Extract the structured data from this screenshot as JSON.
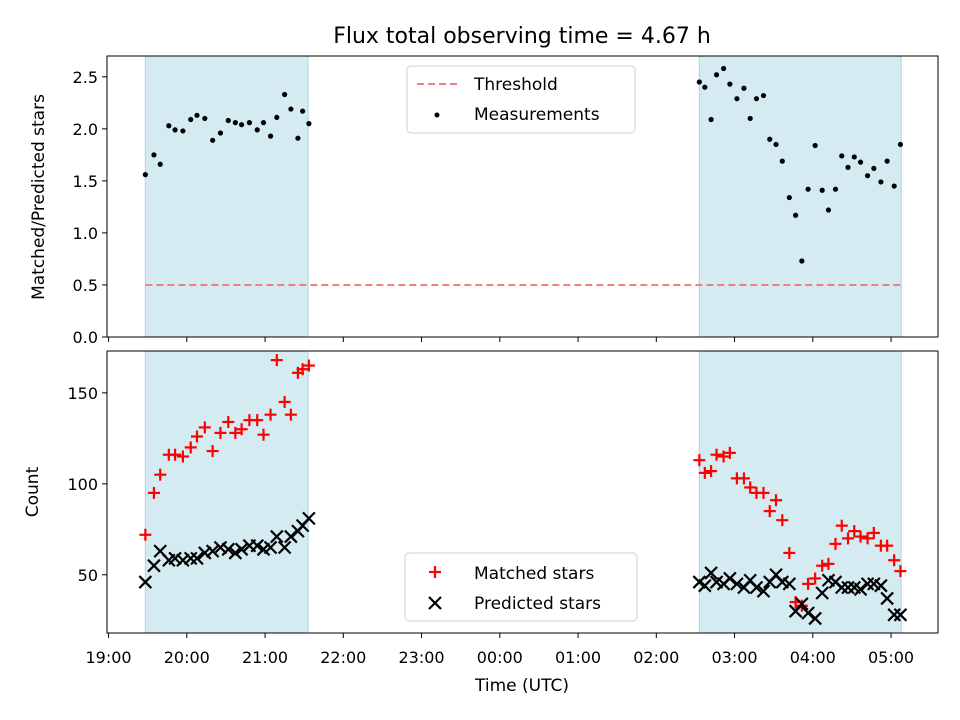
{
  "chart_data": [
    {
      "type": "scatter",
      "title": "Flux total observing time = 4.67 h",
      "xlabel": "",
      "ylabel": "Matched/Predicted stars",
      "ylim": [
        0,
        2.7
      ],
      "yticks": [
        "0.0",
        "0.5",
        "1.0",
        "1.5",
        "2.0",
        "2.5"
      ],
      "threshold": {
        "name": "Threshold",
        "value": 0.5,
        "color": "#f08080",
        "style": "dashed"
      },
      "shaded_intervals": [
        [
          19.47,
          21.55
        ],
        [
          26.55,
          29.13
        ]
      ],
      "shade_color": "#d4ebf1",
      "legend": {
        "placement": "top-center",
        "entries": [
          "Threshold",
          "Measurements"
        ]
      },
      "series": [
        {
          "name": "Measurements",
          "color": "#000000",
          "marker": "dot",
          "x": [
            19.47,
            19.58,
            19.66,
            19.77,
            19.85,
            19.95,
            20.05,
            20.13,
            20.23,
            20.33,
            20.43,
            20.53,
            20.62,
            20.7,
            20.8,
            20.9,
            20.98,
            21.07,
            21.15,
            21.25,
            21.33,
            21.42,
            21.48,
            21.56,
            26.55,
            26.62,
            26.7,
            26.77,
            26.86,
            26.94,
            27.03,
            27.12,
            27.2,
            27.28,
            27.37,
            27.45,
            27.53,
            27.61,
            27.7,
            27.78,
            27.86,
            27.94,
            28.03,
            28.12,
            28.2,
            28.29,
            28.37,
            28.45,
            28.53,
            28.61,
            28.7,
            28.78,
            28.87,
            28.95,
            29.04,
            29.12
          ],
          "y": [
            1.56,
            1.75,
            1.66,
            2.03,
            1.99,
            1.98,
            2.09,
            2.13,
            2.1,
            1.89,
            1.96,
            2.08,
            2.06,
            2.04,
            2.06,
            1.99,
            2.06,
            1.93,
            2.11,
            2.33,
            2.19,
            1.91,
            2.17,
            2.05,
            2.45,
            2.4,
            2.09,
            2.52,
            2.58,
            2.43,
            2.29,
            2.39,
            2.1,
            2.29,
            2.32,
            1.9,
            1.85,
            1.69,
            1.34,
            1.17,
            0.73,
            1.42,
            1.84,
            1.41,
            1.22,
            1.42,
            1.74,
            1.63,
            1.73,
            1.68,
            1.55,
            1.62,
            1.49,
            1.69,
            1.45,
            1.85
          ]
        }
      ]
    },
    {
      "type": "scatter",
      "title": "",
      "xlabel": "Time (UTC)",
      "ylabel": "Count",
      "ylim": [
        18,
        173
      ],
      "yticks": [
        "50",
        "100",
        "150"
      ],
      "xlim": [
        18.98,
        29.6
      ],
      "xticks": [
        "19:00",
        "20:00",
        "21:00",
        "22:00",
        "23:00",
        "00:00",
        "01:00",
        "02:00",
        "03:00",
        "04:00",
        "05:00"
      ],
      "shaded_intervals": [
        [
          19.47,
          21.55
        ],
        [
          26.55,
          29.13
        ]
      ],
      "legend": {
        "placement": "lower-center",
        "entries": [
          "Matched stars",
          "Predicted stars"
        ]
      },
      "series": [
        {
          "name": "Matched stars",
          "color": "#ff0000",
          "marker": "plus",
          "x": [
            19.47,
            19.58,
            19.66,
            19.77,
            19.85,
            19.95,
            20.05,
            20.13,
            20.23,
            20.33,
            20.43,
            20.53,
            20.62,
            20.7,
            20.8,
            20.9,
            20.98,
            21.07,
            21.15,
            21.25,
            21.33,
            21.42,
            21.48,
            21.56,
            26.55,
            26.62,
            26.7,
            26.77,
            26.86,
            26.94,
            27.03,
            27.12,
            27.2,
            27.28,
            27.37,
            27.45,
            27.53,
            27.61,
            27.7,
            27.78,
            27.86,
            27.94,
            28.03,
            28.12,
            28.2,
            28.29,
            28.37,
            28.45,
            28.53,
            28.61,
            28.7,
            28.78,
            28.87,
            28.95,
            29.04,
            29.12
          ],
          "y": [
            72,
            95,
            105,
            116,
            116,
            115,
            120,
            126,
            131,
            118,
            128,
            134,
            128,
            130,
            135,
            135,
            127,
            138,
            168,
            145,
            138,
            161,
            163,
            165,
            113,
            106,
            107,
            116,
            115,
            117,
            103,
            103,
            98,
            95,
            95,
            85,
            91,
            80,
            62,
            35,
            33,
            45,
            48,
            55,
            56,
            67,
            77,
            70,
            74,
            71,
            70,
            73,
            66,
            66,
            58,
            52
          ]
        },
        {
          "name": "Predicted stars",
          "color": "#000000",
          "marker": "x",
          "x": [
            19.47,
            19.58,
            19.66,
            19.77,
            19.85,
            19.95,
            20.05,
            20.13,
            20.23,
            20.33,
            20.43,
            20.53,
            20.62,
            20.7,
            20.8,
            20.9,
            20.98,
            21.07,
            21.15,
            21.25,
            21.33,
            21.42,
            21.48,
            21.56,
            26.55,
            26.62,
            26.7,
            26.77,
            26.86,
            26.94,
            27.03,
            27.12,
            27.2,
            27.28,
            27.37,
            27.45,
            27.53,
            27.61,
            27.7,
            27.78,
            27.86,
            27.94,
            28.03,
            28.12,
            28.2,
            28.29,
            28.37,
            28.45,
            28.53,
            28.61,
            28.7,
            28.78,
            28.87,
            28.95,
            29.04,
            29.12
          ],
          "y": [
            46,
            55,
            63,
            58,
            59,
            58,
            59,
            59,
            62,
            63,
            65,
            64,
            62,
            64,
            66,
            66,
            64,
            65,
            71,
            65,
            71,
            74,
            77,
            81,
            46,
            44,
            51,
            46,
            45,
            48,
            45,
            43,
            47,
            43,
            41,
            46,
            50,
            46,
            45,
            30,
            34,
            29,
            26,
            40,
            47,
            46,
            43,
            43,
            43,
            42,
            45,
            45,
            44,
            37,
            28,
            28
          ]
        }
      ]
    }
  ]
}
